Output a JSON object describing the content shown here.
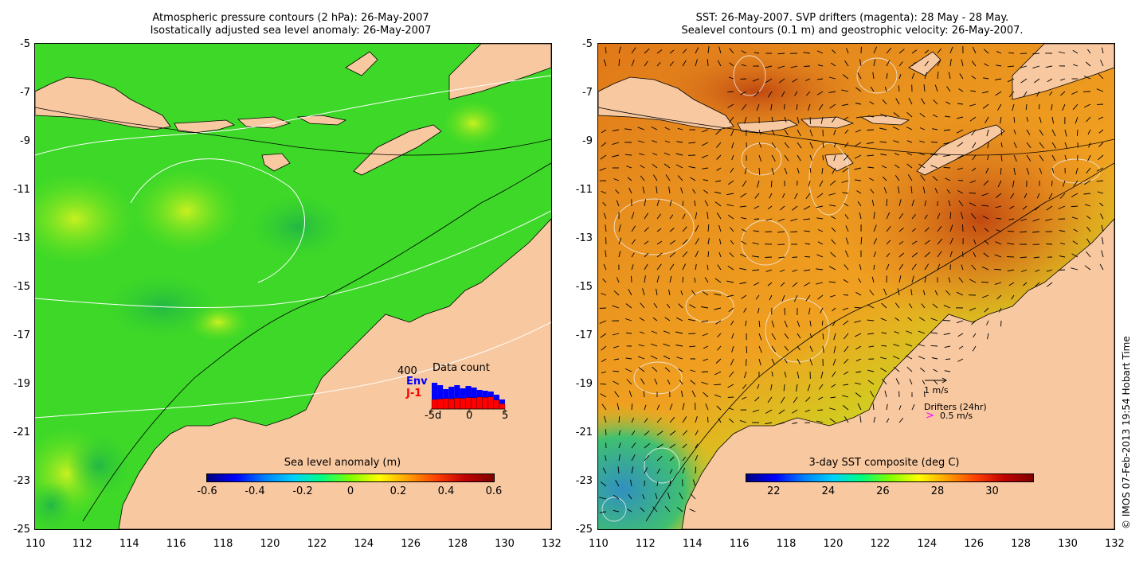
{
  "left_panel": {
    "title_line1": "Atmospheric pressure contours (2 hPa): 26-May-2007",
    "title_line2": "Isostatically adjusted sea level anomaly: 26-May-2007",
    "colorbar": {
      "title": "Sea level anomaly (m)",
      "ticks": [
        "-0.6",
        "-0.4",
        "-0.2",
        "0",
        "0.2",
        "0.4",
        "0.6"
      ],
      "range": [
        -0.6,
        0.6
      ]
    },
    "data_count": {
      "title": "Data count",
      "max_label": "400",
      "env_label": "Env",
      "j1_label": "J-1",
      "x_ticks": [
        "-5d",
        "0",
        "5"
      ],
      "env_color": "#0000ff",
      "j1_color": "#ff0000",
      "env_values": [
        330,
        300,
        250,
        280,
        300,
        260,
        290,
        270,
        240,
        230,
        220,
        180,
        120
      ],
      "j1_values": [
        200,
        210,
        220,
        215,
        230,
        225,
        240,
        235,
        250,
        245,
        255,
        190,
        110
      ]
    }
  },
  "right_panel": {
    "title_line1": "SST: 26-May-2007. SVP drifters (magenta): 28 May - 28 May.",
    "title_line2": "Sealevel contours (0.1 m) and geostrophic velocity: 26-May-2007.",
    "colorbar": {
      "title": "3-day SST composite (deg C)",
      "ticks": [
        "22",
        "24",
        "26",
        "28",
        "30"
      ],
      "range": [
        21,
        31.5
      ]
    },
    "velocity_legend": {
      "speed_label": "1 m/s",
      "drifters_label": "Drifters (24hr)",
      "drifter_speed_label": "0.5 m/s",
      "drifter_symbol": ">",
      "drifter_color": "#ff00ff"
    }
  },
  "axes": {
    "x_ticks": [
      "110",
      "112",
      "114",
      "116",
      "118",
      "120",
      "122",
      "124",
      "126",
      "128",
      "130",
      "132"
    ],
    "y_ticks": [
      "-5",
      "-7",
      "-9",
      "-11",
      "-13",
      "-15",
      "-17",
      "-19",
      "-21",
      "-23",
      "-25"
    ],
    "lon_range": [
      110,
      132
    ],
    "lat_range": [
      -25,
      -5
    ]
  },
  "copyright": "© IMOS 07-Feb-2013 19:54 Hobart Time",
  "colors": {
    "land": "#f8c8a0",
    "sla_sea": "#33dd22",
    "sst_sea": "#e08a20"
  }
}
